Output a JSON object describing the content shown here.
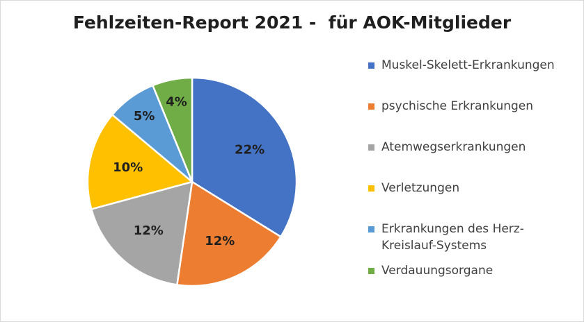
{
  "chart_data": {
    "type": "pie",
    "title": "Fehlzeiten-Report 2021 -  für AOK-Mitglieder",
    "slices": [
      {
        "name": "Muskel-Skelett-Erkrankungen",
        "value": 22,
        "label": "22%",
        "color": "#4472C4"
      },
      {
        "name": "psychische Erkrankungen",
        "value": 12,
        "label": "12%",
        "color": "#ED7D31"
      },
      {
        "name": "Atemwegserkrankungen",
        "value": 12,
        "label": "12%",
        "color": "#A5A5A5"
      },
      {
        "name": "Verletzungen",
        "value": 10,
        "label": "10%",
        "color": "#FFC000"
      },
      {
        "name": "Erkrankungen des Herz-\nKreislauf-Systems",
        "value": 5,
        "label": "5%",
        "color": "#5B9BD5"
      },
      {
        "name": "Verdauungsorgane",
        "value": 4,
        "label": "4%",
        "color": "#70AD47"
      }
    ],
    "legend": "right"
  }
}
